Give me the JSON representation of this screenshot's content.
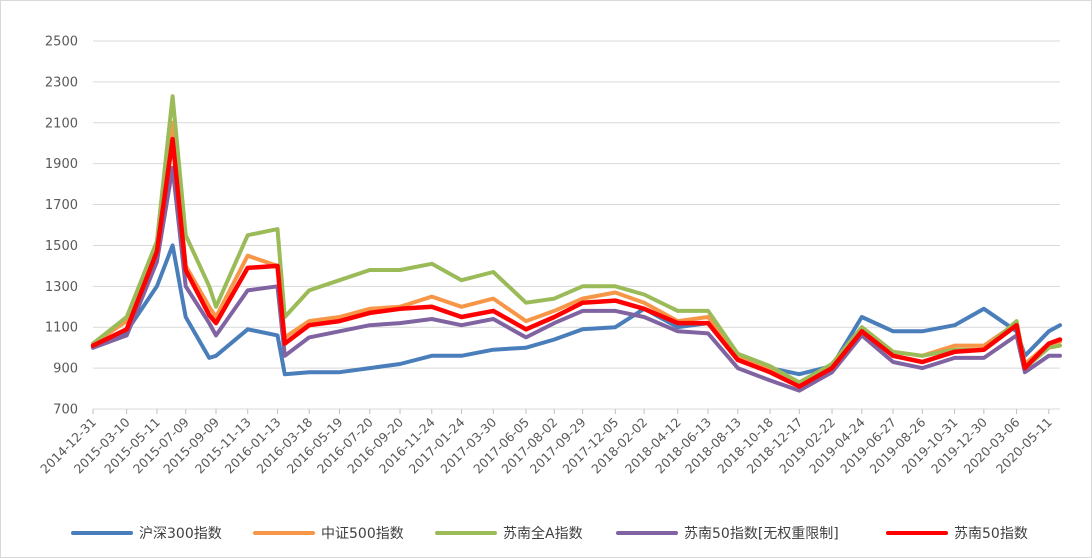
{
  "chart_data": {
    "type": "line",
    "title": "",
    "xlabel": "",
    "ylabel": "",
    "ylim": [
      700,
      2500
    ],
    "yticks": [
      700,
      900,
      1100,
      1300,
      1500,
      1700,
      1900,
      2100,
      2300,
      2500
    ],
    "grid": "horizontal",
    "legend": "bottom",
    "x_tick_labels": [
      "2014-12-31",
      "2015-03-10",
      "2015-05-11",
      "2015-07-09",
      "2015-09-09",
      "2015-11-13",
      "2016-01-13",
      "2016-03-18",
      "2016-05-19",
      "2016-07-20",
      "2016-09-20",
      "2016-11-24",
      "2017-01-24",
      "2017-03-30",
      "2017-06-05",
      "2017-08-02",
      "2017-09-29",
      "2017-12-05",
      "2018-02-02",
      "2018-04-12",
      "2018-06-13",
      "2018-08-13",
      "2018-10-18",
      "2018-12-17",
      "2019-02-22",
      "2019-04-24",
      "2019-06-27",
      "2019-08-26",
      "2019-10-31",
      "2019-12-30",
      "2020-03-06",
      "2020-05-11"
    ],
    "x_points": [
      "2014-12-31",
      "2015-03-10",
      "2015-05-11",
      "2015-06-12",
      "2015-07-09",
      "2015-08-26",
      "2015-09-09",
      "2015-11-13",
      "2016-01-13",
      "2016-01-28",
      "2016-03-18",
      "2016-05-19",
      "2016-07-20",
      "2016-09-20",
      "2016-11-24",
      "2017-01-24",
      "2017-03-30",
      "2017-06-05",
      "2017-08-02",
      "2017-09-29",
      "2017-12-05",
      "2018-02-02",
      "2018-04-12",
      "2018-06-13",
      "2018-08-13",
      "2018-10-18",
      "2018-12-17",
      "2019-02-22",
      "2019-04-24",
      "2019-06-27",
      "2019-08-26",
      "2019-10-31",
      "2019-12-30",
      "2020-03-06",
      "2020-03-23",
      "2020-05-11",
      "2020-06-03"
    ],
    "series": [
      {
        "name": "沪深300指数",
        "color": "#4a7ebb",
        "width": 4,
        "values": [
          1000,
          1080,
          1300,
          1500,
          1150,
          950,
          960,
          1090,
          1060,
          870,
          880,
          880,
          900,
          920,
          960,
          960,
          990,
          1000,
          1040,
          1090,
          1100,
          1190,
          1100,
          1120,
          960,
          900,
          870,
          910,
          1150,
          1080,
          1080,
          1110,
          1190,
          1080,
          960,
          1080,
          1110
        ]
      },
      {
        "name": "中证500指数",
        "color": "#f79646",
        "width": 4,
        "values": [
          1020,
          1130,
          1500,
          2100,
          1400,
          1200,
          1150,
          1450,
          1400,
          1050,
          1130,
          1150,
          1190,
          1200,
          1250,
          1200,
          1240,
          1130,
          1180,
          1240,
          1270,
          1220,
          1130,
          1150,
          960,
          900,
          820,
          920,
          1100,
          980,
          960,
          1010,
          1010,
          1120,
          920,
          1020,
          1030
        ]
      },
      {
        "name": "苏南全A指数",
        "color": "#9bbb59",
        "width": 4,
        "values": [
          1020,
          1150,
          1520,
          2230,
          1550,
          1300,
          1200,
          1550,
          1580,
          1150,
          1280,
          1330,
          1380,
          1380,
          1410,
          1330,
          1370,
          1220,
          1240,
          1300,
          1300,
          1260,
          1180,
          1180,
          970,
          910,
          830,
          920,
          1100,
          980,
          960,
          990,
          990,
          1130,
          900,
          1000,
          1010
        ]
      },
      {
        "name": "苏南50指数[无权重限制]",
        "color": "#8064a2",
        "width": 4,
        "values": [
          1000,
          1060,
          1420,
          1880,
          1300,
          1120,
          1060,
          1280,
          1300,
          960,
          1050,
          1080,
          1110,
          1120,
          1140,
          1110,
          1140,
          1050,
          1120,
          1180,
          1180,
          1150,
          1080,
          1070,
          900,
          840,
          790,
          880,
          1060,
          930,
          900,
          950,
          950,
          1060,
          880,
          960,
          960
        ]
      },
      {
        "name": "苏南50指数",
        "color": "#ff0000",
        "width": 4.5,
        "values": [
          1010,
          1090,
          1470,
          2020,
          1380,
          1160,
          1120,
          1390,
          1400,
          1020,
          1110,
          1130,
          1170,
          1190,
          1200,
          1150,
          1180,
          1090,
          1150,
          1220,
          1230,
          1190,
          1120,
          1120,
          940,
          880,
          810,
          900,
          1080,
          960,
          930,
          980,
          990,
          1110,
          900,
          1020,
          1040
        ]
      }
    ]
  }
}
